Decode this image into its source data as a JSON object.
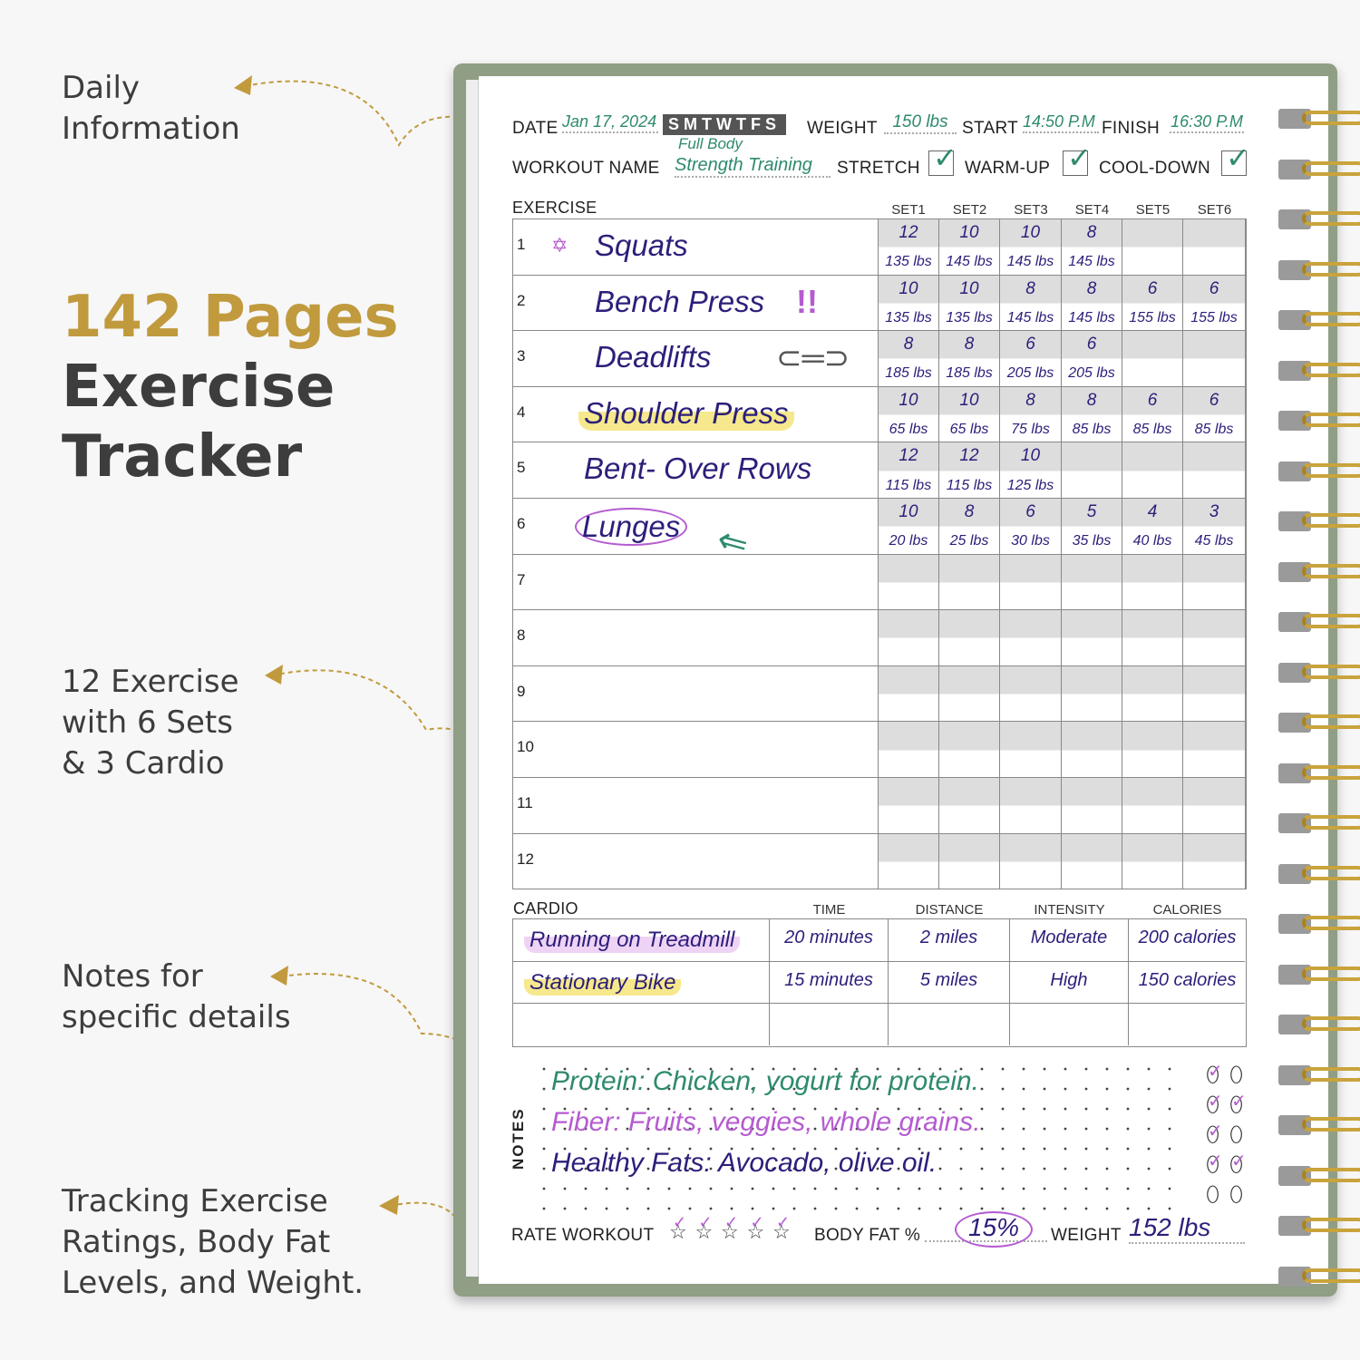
{
  "callouts": {
    "daily": [
      "Daily",
      "Information"
    ],
    "title_gold": "142 Pages",
    "title_rest": [
      "Exercise",
      "Tracker"
    ],
    "exercises": [
      "12 Exercise",
      "with 6 Sets",
      "& 3 Cardio"
    ],
    "notes": [
      "Notes for",
      "specific details"
    ],
    "tracking": [
      "Tracking Exercise",
      "Ratings, Body Fat",
      "Levels, and Weight."
    ]
  },
  "colors": {
    "gold": "#c19a3e",
    "cover": "#8f9e85",
    "green_ink": "#2e8a6e",
    "navy_ink": "#2b1f7a",
    "purple_ink": "#b55bd1"
  },
  "header": {
    "date_label": "DATE",
    "date": "Jan 17, 2024",
    "days": "SMTWTFS",
    "weight_label": "WEIGHT",
    "weight": "150 lbs",
    "start_label": "START",
    "start": "14:50 P.M",
    "finish_label": "FINISH",
    "finish": "16:30 P.M",
    "workout_label": "WORKOUT NAME",
    "workout_line1": "Full Body",
    "workout_line2": "Strength Training",
    "stretch_label": "STRETCH",
    "warmup_label": "WARM-UP",
    "cooldown_label": "COOL-DOWN",
    "stretch": true,
    "warmup": true,
    "cooldown": true
  },
  "exercise_table": {
    "label": "EXERCISE",
    "sets": [
      "SET1",
      "SET2",
      "SET3",
      "SET4",
      "SET5",
      "SET6"
    ],
    "rows": [
      {
        "n": "1",
        "name": "Squats",
        "reps": [
          "12",
          "10",
          "10",
          "8",
          "",
          ""
        ],
        "weights": [
          "135 lbs",
          "145 lbs",
          "145 lbs",
          "145 lbs",
          "",
          ""
        ]
      },
      {
        "n": "2",
        "name": "Bench Press",
        "reps": [
          "10",
          "10",
          "8",
          "8",
          "6",
          "6"
        ],
        "weights": [
          "135 lbs",
          "135 lbs",
          "145 lbs",
          "145 lbs",
          "155 lbs",
          "155 lbs"
        ]
      },
      {
        "n": "3",
        "name": "Deadlifts",
        "reps": [
          "8",
          "8",
          "6",
          "6",
          "",
          ""
        ],
        "weights": [
          "185 lbs",
          "185 lbs",
          "205 lbs",
          "205 lbs",
          "",
          ""
        ]
      },
      {
        "n": "4",
        "name": "Shoulder Press",
        "reps": [
          "10",
          "10",
          "8",
          "8",
          "6",
          "6"
        ],
        "weights": [
          "65 lbs",
          "65 lbs",
          "75 lbs",
          "85 lbs",
          "85 lbs",
          "85 lbs"
        ]
      },
      {
        "n": "5",
        "name": "Bent- Over Rows",
        "reps": [
          "12",
          "12",
          "10",
          "",
          "",
          ""
        ],
        "weights": [
          "115 lbs",
          "115 lbs",
          "125 lbs",
          "",
          "",
          ""
        ]
      },
      {
        "n": "6",
        "name": "Lunges",
        "reps": [
          "10",
          "8",
          "6",
          "5",
          "4",
          "3"
        ],
        "weights": [
          "20 lbs",
          "25 lbs",
          "30 lbs",
          "35 lbs",
          "40 lbs",
          "45 lbs"
        ]
      },
      {
        "n": "7",
        "name": "",
        "reps": [
          "",
          "",
          "",
          "",
          "",
          ""
        ],
        "weights": [
          "",
          "",
          "",
          "",
          "",
          ""
        ]
      },
      {
        "n": "8",
        "name": "",
        "reps": [
          "",
          "",
          "",
          "",
          "",
          ""
        ],
        "weights": [
          "",
          "",
          "",
          "",
          "",
          ""
        ]
      },
      {
        "n": "9",
        "name": "",
        "reps": [
          "",
          "",
          "",
          "",
          "",
          ""
        ],
        "weights": [
          "",
          "",
          "",
          "",
          "",
          ""
        ]
      },
      {
        "n": "10",
        "name": "",
        "reps": [
          "",
          "",
          "",
          "",
          "",
          ""
        ],
        "weights": [
          "",
          "",
          "",
          "",
          "",
          ""
        ]
      },
      {
        "n": "11",
        "name": "",
        "reps": [
          "",
          "",
          "",
          "",
          "",
          ""
        ],
        "weights": [
          "",
          "",
          "",
          "",
          "",
          ""
        ]
      },
      {
        "n": "12",
        "name": "",
        "reps": [
          "",
          "",
          "",
          "",
          "",
          ""
        ],
        "weights": [
          "",
          "",
          "",
          "",
          "",
          ""
        ]
      }
    ]
  },
  "cardio": {
    "label": "CARDIO",
    "columns": [
      "TIME",
      "DISTANCE",
      "INTENSITY",
      "CALORIES"
    ],
    "rows": [
      [
        "Running on Treadmill",
        "20 minutes",
        "2 miles",
        "Moderate",
        "200 calories"
      ],
      [
        "Stationary Bike",
        "15 minutes",
        "5 miles",
        "High",
        "150 calories"
      ],
      [
        "",
        "",
        "",
        "",
        ""
      ]
    ]
  },
  "notes": {
    "label": "NOTES",
    "lines": [
      "Protein: Chicken, yogurt for protein.",
      "Fiber: Fruits, veggies, whole grains.",
      "Healthy Fats: Avocado, olive oil."
    ],
    "water_checked": [
      true,
      false,
      true,
      true,
      true,
      false,
      true,
      true,
      false,
      false
    ]
  },
  "footer": {
    "rate_label": "RATE WORKOUT",
    "stars_checked": 5,
    "stars_total": 5,
    "bodyfat_label": "BODY FAT %",
    "bodyfat": "15%",
    "weight_label": "WEIGHT",
    "weight": "152 lbs"
  }
}
